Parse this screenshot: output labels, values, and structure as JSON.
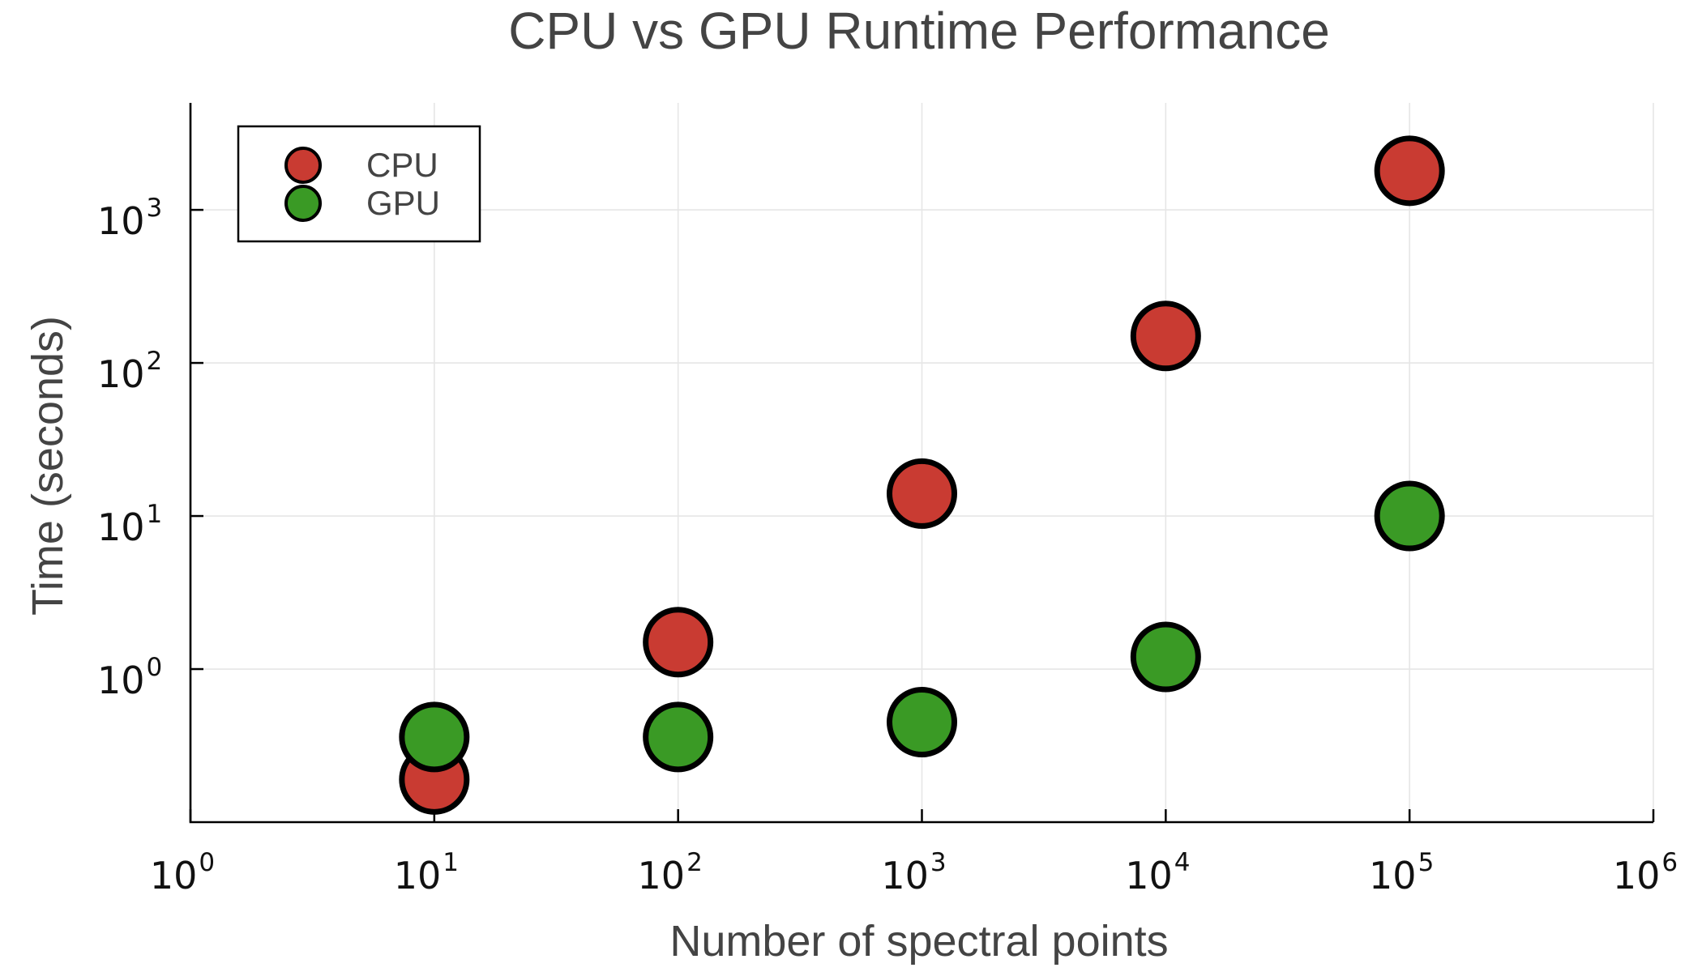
{
  "chart_data": {
    "type": "scatter",
    "title": "CPU vs GPU Runtime Performance",
    "xlabel": "Number of spectral points",
    "ylabel": "Time (seconds)",
    "xscale": "log",
    "yscale": "log",
    "xlim": [
      1,
      1000000
    ],
    "ylim": [
      0.1,
      5000
    ],
    "x_ticks": [
      {
        "value": 1,
        "base": "10",
        "exp": "0"
      },
      {
        "value": 10,
        "base": "10",
        "exp": "1"
      },
      {
        "value": 100,
        "base": "10",
        "exp": "2"
      },
      {
        "value": 1000,
        "base": "10",
        "exp": "3"
      },
      {
        "value": 10000,
        "base": "10",
        "exp": "4"
      },
      {
        "value": 100000,
        "base": "10",
        "exp": "5"
      },
      {
        "value": 1000000,
        "base": "10",
        "exp": "6"
      }
    ],
    "y_ticks": [
      {
        "value": 1,
        "base": "10",
        "exp": "0"
      },
      {
        "value": 10,
        "base": "10",
        "exp": "1"
      },
      {
        "value": 100,
        "base": "10",
        "exp": "2"
      },
      {
        "value": 1000,
        "base": "10",
        "exp": "3"
      }
    ],
    "grid": true,
    "legend": "top-left",
    "series": [
      {
        "name": "CPU",
        "color": "#c93b32",
        "x": [
          10,
          100,
          1000,
          10000,
          100000
        ],
        "y": [
          0.19,
          1.5,
          14,
          150,
          1800
        ]
      },
      {
        "name": "GPU",
        "color": "#3a9a25",
        "x": [
          10,
          100,
          1000,
          10000,
          100000
        ],
        "y": [
          0.36,
          0.36,
          0.45,
          1.2,
          10
        ]
      }
    ]
  }
}
